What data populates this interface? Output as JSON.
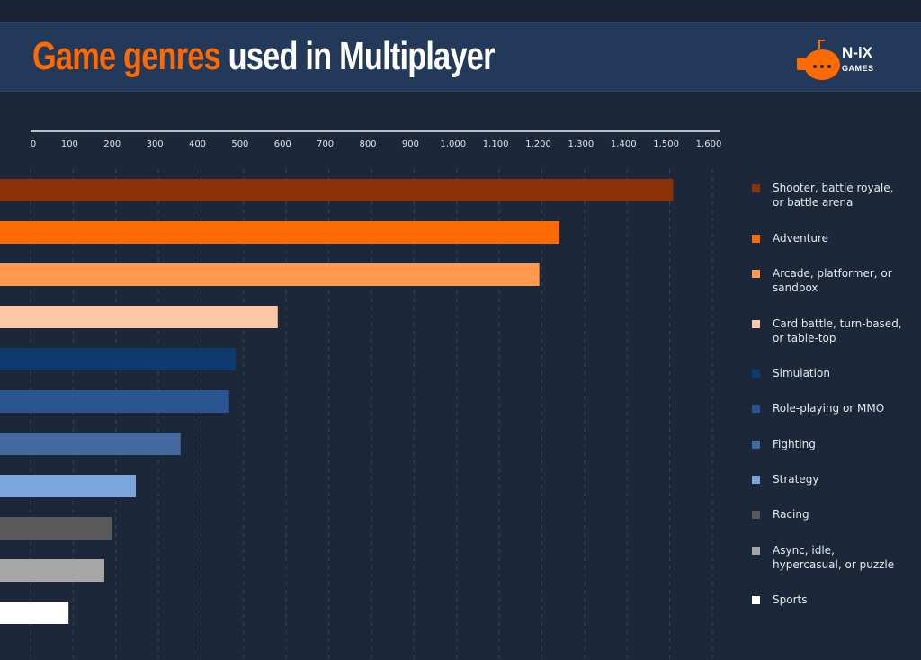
{
  "header": {
    "title_highlight": "Game genres",
    "title_rest": "used in Multiplayer",
    "logo_text": "N-iX",
    "logo_sub": "GAMES"
  },
  "chart_data": {
    "type": "bar",
    "orientation": "horizontal",
    "title": "Game genres used in Multiplayer",
    "xlim": [
      0,
      1600
    ],
    "xticks": [
      0,
      100,
      200,
      300,
      400,
      500,
      600,
      700,
      800,
      900,
      1000,
      1100,
      1200,
      1300,
      1400,
      1500,
      1600
    ],
    "xtick_labels": [
      "0",
      "100",
      "200",
      "300",
      "400",
      "500",
      "600",
      "700",
      "800",
      "900",
      "1,000",
      "1,100",
      "1,200",
      "1,300",
      "1,400",
      "1,500",
      "1,600"
    ],
    "grid": "vertical dashed",
    "legend_placement": "right",
    "categories": [
      "Shooter, battle royale, or battle arena",
      "Adventure",
      "Arcade, platformer, or sandbox",
      "Card battle, turn-based, or table-top",
      "Simulation",
      "Role-playing or MMO",
      "Fighting",
      "Strategy",
      "Racing",
      "Async, idle, hypercasual, or puzzle",
      "Sports"
    ],
    "legend_lines": [
      [
        "Shooter, battle royale,",
        "or battle arena"
      ],
      [
        "Adventure"
      ],
      [
        "Arcade, platformer, or",
        "sandbox"
      ],
      [
        "Card battle, turn-based,",
        "or table-top"
      ],
      [
        "Simulation"
      ],
      [
        "Role-playing or MMO"
      ],
      [
        "Fighting"
      ],
      [
        "Strategy"
      ],
      [
        "Racing"
      ],
      [
        "Async, idle,",
        "hypercasual, or puzzle"
      ],
      [
        "Sports"
      ]
    ],
    "values": [
      1508,
      1241,
      1194,
      580,
      481,
      466,
      352,
      247,
      190,
      173,
      89
    ],
    "colors": [
      "#8b3209",
      "#ff6a00",
      "#ff9a4f",
      "#fcc8a5",
      "#0e3a6e",
      "#2a5590",
      "#44699e",
      "#7ba6dc",
      "#595959",
      "#a6a6a6",
      "#ffffff"
    ]
  }
}
